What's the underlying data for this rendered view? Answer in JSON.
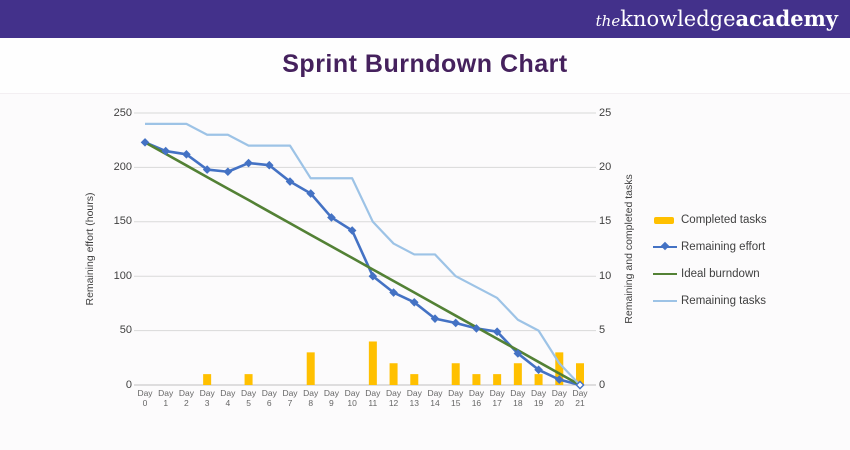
{
  "header": {
    "logo_the": "the",
    "logo_knowledge": "knowledge",
    "logo_academy": "academy",
    "bg_color": "#43318b"
  },
  "title": {
    "text": "Sprint Burndown Chart",
    "color": "#45215d"
  },
  "chart_data": {
    "type": "combo",
    "subtypes": [
      "bar",
      "line",
      "line",
      "line"
    ],
    "categories": [
      "Day 0",
      "Day 1",
      "Day 2",
      "Day 3",
      "Day 4",
      "Day 5",
      "Day 6",
      "Day 7",
      "Day 8",
      "Day 9",
      "Day 10",
      "Day 11",
      "Day 12",
      "Day 13",
      "Day 14",
      "Day 15",
      "Day 16",
      "Day 17",
      "Day 18",
      "Day 19",
      "Day 20",
      "Day 21"
    ],
    "series": [
      {
        "name": "Completed tasks",
        "type": "bar",
        "axis": "right",
        "color": "#FFC000",
        "values": [
          0,
          0,
          0,
          1,
          0,
          1,
          0,
          0,
          3,
          0,
          0,
          4,
          2,
          1,
          0,
          2,
          1,
          1,
          2,
          1,
          3,
          2
        ]
      },
      {
        "name": "Remaining effort",
        "type": "line",
        "axis": "left",
        "color": "#4472C4",
        "marker": "diamond",
        "values": [
          223,
          215,
          212,
          198,
          196,
          204,
          202,
          187,
          176,
          154,
          142,
          100,
          85,
          76,
          61,
          57,
          52,
          49,
          29,
          14,
          5,
          0
        ]
      },
      {
        "name": "Ideal burndown",
        "type": "line",
        "axis": "left",
        "color": "#538135",
        "values": [
          223,
          212.4,
          201.8,
          191.1,
          180.5,
          170,
          159.3,
          148.7,
          138,
          127.4,
          116.8,
          106.2,
          95.6,
          85,
          74.3,
          63.7,
          53.1,
          42.5,
          31.9,
          21.2,
          10.6,
          0
        ]
      },
      {
        "name": "Remaining tasks",
        "type": "line",
        "axis": "right",
        "color": "#9DC3E6",
        "values": [
          24,
          24,
          24,
          23,
          23,
          22,
          22,
          22,
          19,
          19,
          19,
          15,
          13,
          12,
          12,
          10,
          9,
          8,
          6,
          5,
          2,
          0
        ]
      }
    ],
    "left_axis": {
      "title": "Remaining effort (hours)",
      "min": 0,
      "max": 250,
      "ticks": [
        0,
        50,
        100,
        150,
        200,
        250
      ]
    },
    "right_axis": {
      "title": "Remaining and completed tasks",
      "min": 0,
      "max": 25,
      "ticks": [
        0,
        5,
        10,
        15,
        20,
        25
      ]
    },
    "grid": true,
    "gridline_color": "#d9d9d9",
    "axisline_color": "#bfbfbf",
    "legend_position": "right"
  }
}
